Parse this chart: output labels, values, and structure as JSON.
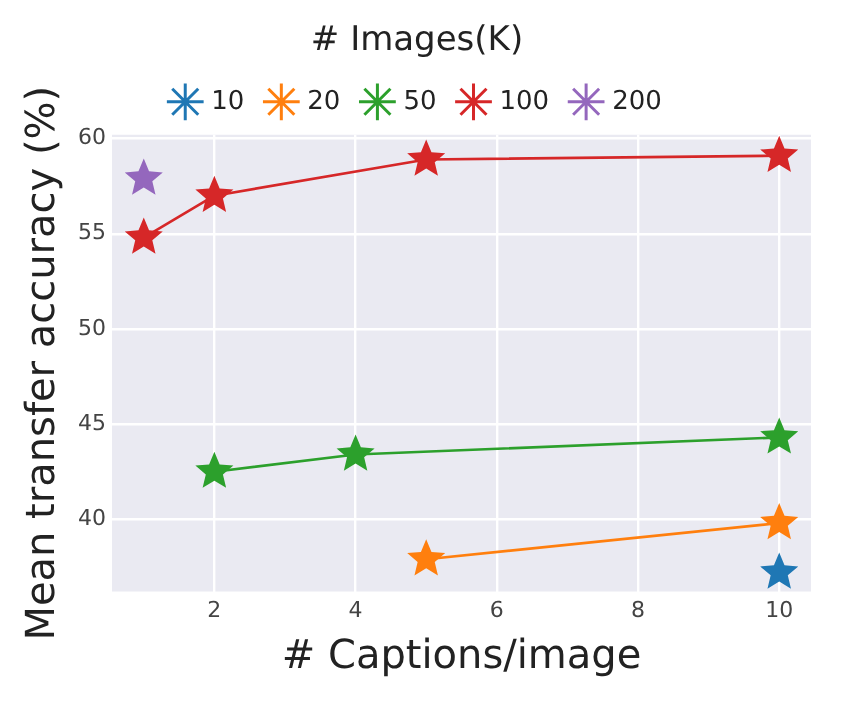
{
  "chart_data": {
    "type": "line",
    "xlabel": "# Captions/image",
    "ylabel": "Mean transfer accuracy (%)",
    "legend_title": "# Images(K)",
    "xlim": [
      0.55,
      10.45
    ],
    "xticks": [
      2,
      4,
      6,
      8,
      10
    ],
    "ylim": [
      36.2,
      60.2
    ],
    "yticks": [
      40,
      45,
      50,
      55,
      60
    ],
    "grid": true,
    "legend": "top",
    "marker": "star",
    "line_style": "solid",
    "series": [
      {
        "name": "10",
        "color": "#1f77b4",
        "x": [
          10
        ],
        "values": [
          37.2
        ]
      },
      {
        "name": "20",
        "color": "#ff7f0e",
        "x": [
          5,
          10
        ],
        "values": [
          37.9,
          39.8
        ]
      },
      {
        "name": "50",
        "color": "#2ca02c",
        "x": [
          2,
          4,
          10
        ],
        "values": [
          42.5,
          43.4,
          44.3
        ]
      },
      {
        "name": "100",
        "color": "#d62728",
        "x": [
          1,
          2,
          5,
          10
        ],
        "values": [
          54.8,
          57.0,
          58.9,
          59.1
        ]
      },
      {
        "name": "200",
        "color": "#9467bd",
        "x": [
          1
        ],
        "values": [
          57.9
        ]
      }
    ]
  }
}
